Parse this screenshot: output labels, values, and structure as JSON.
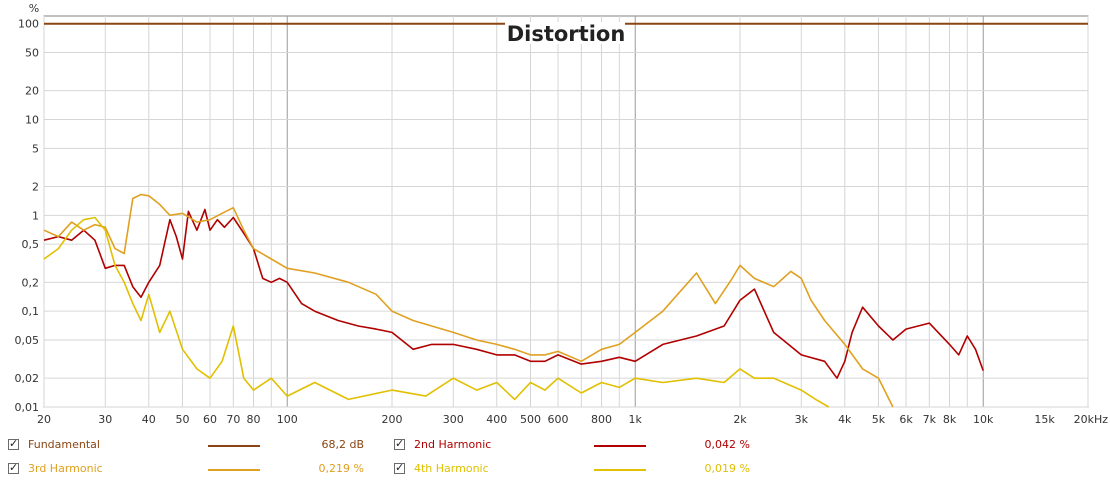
{
  "chart_data": {
    "type": "line",
    "title": "Distortion",
    "y_unit_label": "%",
    "x_scale": "log",
    "y_scale": "log",
    "xlim": [
      20,
      20000
    ],
    "ylim": [
      0.01,
      100
    ],
    "grid": true,
    "x_ticks": [
      {
        "v": 20,
        "label": "20"
      },
      {
        "v": 30,
        "label": "30"
      },
      {
        "v": 40,
        "label": "40"
      },
      {
        "v": 50,
        "label": "50"
      },
      {
        "v": 60,
        "label": "60"
      },
      {
        "v": 70,
        "label": "70"
      },
      {
        "v": 80,
        "label": "80"
      },
      {
        "v": 100,
        "label": "100"
      },
      {
        "v": 200,
        "label": "200"
      },
      {
        "v": 300,
        "label": "300"
      },
      {
        "v": 400,
        "label": "400"
      },
      {
        "v": 500,
        "label": "500"
      },
      {
        "v": 600,
        "label": "600"
      },
      {
        "v": 800,
        "label": "800"
      },
      {
        "v": 1000,
        "label": "1k"
      },
      {
        "v": 2000,
        "label": "2k"
      },
      {
        "v": 3000,
        "label": "3k"
      },
      {
        "v": 4000,
        "label": "4k"
      },
      {
        "v": 5000,
        "label": "5k"
      },
      {
        "v": 6000,
        "label": "6k"
      },
      {
        "v": 7000,
        "label": "7k"
      },
      {
        "v": 8000,
        "label": "8k"
      },
      {
        "v": 10000,
        "label": "10k"
      },
      {
        "v": 15000,
        "label": "15k"
      },
      {
        "v": 20000,
        "label": "20kHz"
      }
    ],
    "y_ticks": [
      {
        "v": 100,
        "label": "100"
      },
      {
        "v": 50,
        "label": "50"
      },
      {
        "v": 20,
        "label": "20"
      },
      {
        "v": 10,
        "label": "10"
      },
      {
        "v": 5,
        "label": "5"
      },
      {
        "v": 2,
        "label": "2"
      },
      {
        "v": 1,
        "label": "1"
      },
      {
        "v": 0.5,
        "label": "0,5"
      },
      {
        "v": 0.2,
        "label": "0,2"
      },
      {
        "v": 0.1,
        "label": "0,1"
      },
      {
        "v": 0.05,
        "label": "0,05"
      },
      {
        "v": 0.02,
        "label": "0,02"
      },
      {
        "v": 0.01,
        "label": "0,01"
      }
    ],
    "series": [
      {
        "name": "Fundamental",
        "color": "#8b4513",
        "x": [
          20,
          20000
        ],
        "y": [
          100,
          100
        ]
      },
      {
        "name": "2nd Harmonic",
        "color": "#b00000",
        "x": [
          20,
          22,
          24,
          26,
          28,
          30,
          32,
          34,
          36,
          38,
          40,
          43,
          46,
          48,
          50,
          52,
          55,
          58,
          60,
          63,
          66,
          70,
          75,
          80,
          85,
          90,
          95,
          100,
          110,
          120,
          140,
          160,
          180,
          200,
          230,
          260,
          300,
          350,
          400,
          450,
          500,
          550,
          600,
          700,
          800,
          900,
          1000,
          1200,
          1500,
          1800,
          2000,
          2200,
          2500,
          3000,
          3500,
          3800,
          4000,
          4200,
          4500,
          5000,
          5500,
          6000,
          7000,
          8000,
          8500,
          9000,
          9500,
          10000
        ],
        "y": [
          0.55,
          0.6,
          0.55,
          0.7,
          0.55,
          0.28,
          0.3,
          0.3,
          0.18,
          0.14,
          0.2,
          0.3,
          0.9,
          0.6,
          0.35,
          1.1,
          0.7,
          1.15,
          0.7,
          0.9,
          0.75,
          0.95,
          0.65,
          0.45,
          0.22,
          0.2,
          0.22,
          0.2,
          0.12,
          0.1,
          0.08,
          0.07,
          0.065,
          0.06,
          0.04,
          0.045,
          0.045,
          0.04,
          0.035,
          0.035,
          0.03,
          0.03,
          0.035,
          0.028,
          0.03,
          0.033,
          0.03,
          0.045,
          0.055,
          0.07,
          0.13,
          0.17,
          0.06,
          0.035,
          0.03,
          0.02,
          0.03,
          0.06,
          0.11,
          0.07,
          0.05,
          0.065,
          0.075,
          0.045,
          0.035,
          0.055,
          0.04,
          0.024
        ]
      },
      {
        "name": "3rd Harmonic",
        "color": "#e0a020",
        "x": [
          20,
          22,
          24,
          26,
          28,
          30,
          32,
          34,
          36,
          38,
          40,
          43,
          46,
          50,
          55,
          60,
          65,
          70,
          75,
          80,
          90,
          100,
          120,
          150,
          180,
          200,
          230,
          260,
          300,
          350,
          400,
          450,
          500,
          550,
          600,
          700,
          800,
          900,
          1000,
          1200,
          1500,
          1700,
          1900,
          2000,
          2200,
          2500,
          2800,
          3000,
          3200,
          3500,
          4000,
          4500,
          5000,
          5500
        ],
        "y": [
          0.7,
          0.6,
          0.85,
          0.7,
          0.8,
          0.75,
          0.45,
          0.4,
          1.5,
          1.65,
          1.6,
          1.3,
          1.0,
          1.05,
          0.85,
          0.9,
          1.05,
          1.2,
          0.7,
          0.45,
          0.35,
          0.28,
          0.25,
          0.2,
          0.15,
          0.1,
          0.08,
          0.07,
          0.06,
          0.05,
          0.045,
          0.04,
          0.035,
          0.035,
          0.038,
          0.03,
          0.04,
          0.045,
          0.06,
          0.1,
          0.25,
          0.12,
          0.22,
          0.3,
          0.22,
          0.18,
          0.26,
          0.22,
          0.13,
          0.08,
          0.045,
          0.025,
          0.02,
          0.01
        ]
      },
      {
        "name": "4th Harmonic",
        "color": "#e0c000",
        "x": [
          20,
          22,
          24,
          26,
          28,
          30,
          32,
          34,
          36,
          38,
          40,
          43,
          46,
          50,
          55,
          60,
          65,
          70,
          75,
          80,
          90,
          100,
          120,
          150,
          200,
          250,
          300,
          350,
          400,
          450,
          500,
          550,
          600,
          700,
          800,
          900,
          1000,
          1200,
          1500,
          1800,
          2000,
          2200,
          2500,
          3000,
          3300,
          3600
        ],
        "y": [
          0.35,
          0.45,
          0.7,
          0.9,
          0.95,
          0.7,
          0.3,
          0.2,
          0.12,
          0.08,
          0.15,
          0.06,
          0.1,
          0.04,
          0.025,
          0.02,
          0.03,
          0.07,
          0.02,
          0.015,
          0.02,
          0.013,
          0.018,
          0.012,
          0.015,
          0.013,
          0.02,
          0.015,
          0.018,
          0.012,
          0.018,
          0.015,
          0.02,
          0.014,
          0.018,
          0.016,
          0.02,
          0.018,
          0.02,
          0.018,
          0.025,
          0.02,
          0.02,
          0.015,
          0.012,
          0.01
        ]
      }
    ]
  },
  "legend": [
    {
      "name": "Fundamental",
      "value": "68,2 dB",
      "color": "#8b4513",
      "checked": true
    },
    {
      "name": "2nd Harmonic",
      "value": "0,042 %",
      "color": "#b00000",
      "checked": true
    },
    {
      "name": "3rd Harmonic",
      "value": "0,219 %",
      "color": "#e0a020",
      "checked": true
    },
    {
      "name": "4th Harmonic",
      "value": "0,019 %",
      "color": "#e0c000",
      "checked": true
    }
  ]
}
